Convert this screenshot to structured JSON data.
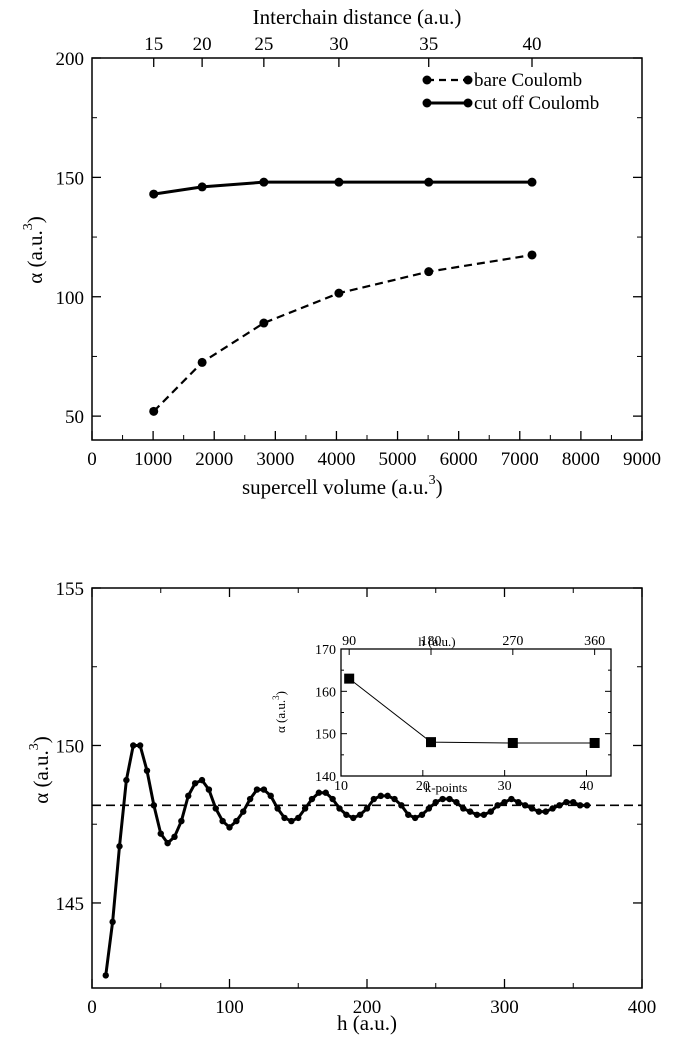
{
  "chart_data": [
    {
      "type": "line",
      "top_axis": {
        "label": "Interchain distance (a.u.)",
        "ticks": [
          "15",
          "20",
          "25",
          "30",
          "35",
          "40"
        ],
        "tick_x": [
          1010,
          1802,
          2812,
          4040,
          5510,
          7200
        ]
      },
      "x_axis": {
        "label": "supercell volume  (a.u.",
        "unit_sup": "3",
        "label_tail": ")",
        "min": 0,
        "max": 9000,
        "ticks": [
          0,
          1000,
          2000,
          3000,
          4000,
          5000,
          6000,
          7000,
          8000,
          9000
        ]
      },
      "y_axis": {
        "label": "α (a.u.",
        "unit_sup": "3",
        "label_tail": ")",
        "min": 40,
        "max": 200,
        "ticks": [
          50,
          100,
          150,
          200
        ]
      },
      "legend": {
        "position": "top-right"
      },
      "series": [
        {
          "name": "bare Coulomb",
          "style": "dashed",
          "x": [
            1010,
            1802,
            2812,
            4040,
            5510,
            7200
          ],
          "y": [
            52,
            72.5,
            89,
            101.5,
            110.5,
            117.5
          ]
        },
        {
          "name": "cut off Coulomb",
          "style": "solid",
          "x": [
            1010,
            1802,
            2812,
            4040,
            5510,
            7200
          ],
          "y": [
            143,
            146,
            148,
            148,
            148,
            148
          ]
        }
      ]
    },
    {
      "type": "line",
      "x_axis": {
        "label": "h (a.u.)",
        "min": 0,
        "max": 400,
        "ticks": [
          0,
          100,
          200,
          300,
          400
        ]
      },
      "y_axis": {
        "label": "α (a.u.",
        "unit_sup": "3",
        "label_tail": ")",
        "min": 142.3,
        "max": 155,
        "ticks": [
          145,
          150,
          155
        ]
      },
      "reference_line": {
        "y": 148.1,
        "style": "dashed"
      },
      "series": [
        {
          "style": "solid",
          "x": [
            10,
            15,
            20,
            25,
            30,
            35,
            40,
            45,
            50,
            55,
            60,
            65,
            70,
            75,
            80,
            85,
            90,
            95,
            100,
            105,
            110,
            115,
            120,
            125,
            130,
            135,
            140,
            145,
            150,
            155,
            160,
            165,
            170,
            175,
            180,
            185,
            190,
            195,
            200,
            205,
            210,
            215,
            220,
            225,
            230,
            235,
            240,
            245,
            250,
            255,
            260,
            265,
            270,
            275,
            280,
            285,
            290,
            295,
            300,
            305,
            310,
            315,
            320,
            325,
            330,
            335,
            340,
            345,
            350,
            355,
            360
          ],
          "y": [
            142.7,
            144.4,
            146.8,
            148.9,
            150.0,
            150.0,
            149.2,
            148.1,
            147.2,
            146.9,
            147.1,
            147.6,
            148.4,
            148.8,
            148.9,
            148.6,
            148.0,
            147.6,
            147.4,
            147.6,
            147.9,
            148.3,
            148.6,
            148.6,
            148.4,
            148.0,
            147.7,
            147.6,
            147.7,
            148.0,
            148.3,
            148.5,
            148.5,
            148.3,
            148.0,
            147.8,
            147.7,
            147.8,
            148.0,
            148.3,
            148.4,
            148.4,
            148.3,
            148.1,
            147.8,
            147.7,
            147.8,
            148.0,
            148.2,
            148.3,
            148.3,
            148.2,
            148.0,
            147.9,
            147.8,
            147.8,
            147.9,
            148.1,
            148.2,
            148.3,
            148.2,
            148.1,
            148.0,
            147.9,
            147.9,
            148.0,
            148.1,
            148.2,
            148.2,
            148.1,
            148.1
          ]
        }
      ],
      "inset": {
        "type": "line",
        "top_axis": {
          "label": "h (a.u.)",
          "ticks": [
            "90",
            "180",
            "270",
            "360"
          ],
          "tick_x": [
            11,
            21,
            31,
            41
          ]
        },
        "x_axis": {
          "label": "k-points",
          "min": 10,
          "max": 43,
          "ticks": [
            10,
            20,
            30,
            40
          ]
        },
        "y_axis": {
          "label": "α (a.u.",
          "unit_sup": "3",
          "label_tail": ")",
          "min": 140,
          "max": 170,
          "ticks": [
            140,
            150,
            160,
            170
          ]
        },
        "series": [
          {
            "marker": "square",
            "x": [
              11,
              21,
              31,
              41
            ],
            "y": [
              163,
              148,
              147.8,
              147.8
            ]
          }
        ]
      }
    }
  ]
}
